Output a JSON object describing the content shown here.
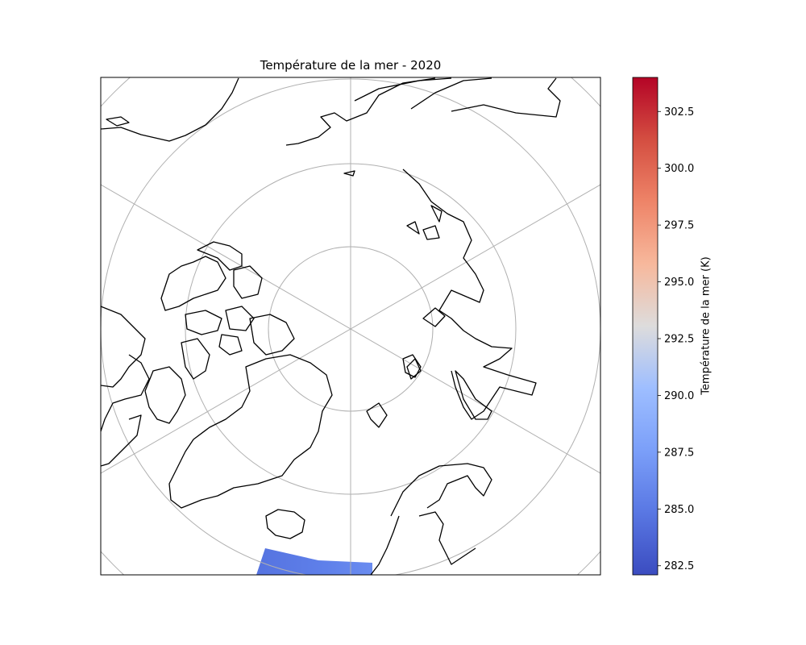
{
  "title": "Température de la mer - 2020",
  "colorbar": {
    "label": "Température de la mer (K)",
    "min": 282.1,
    "max": 304.0,
    "ticks": [
      "282.5",
      "285.0",
      "287.5",
      "290.0",
      "292.5",
      "295.0",
      "297.5",
      "300.0",
      "302.5"
    ],
    "colormap": "coolwarm",
    "colors": [
      "#3b4cc0",
      "#6788ee",
      "#9abbff",
      "#c9d7f0",
      "#dddddd",
      "#f7b89c",
      "#f08a6c",
      "#d95847",
      "#b40426"
    ]
  },
  "map": {
    "projection": "north-polar-stereographic",
    "gridlines": true,
    "coastlines": true,
    "data_patch_color": "#5b7be6"
  }
}
